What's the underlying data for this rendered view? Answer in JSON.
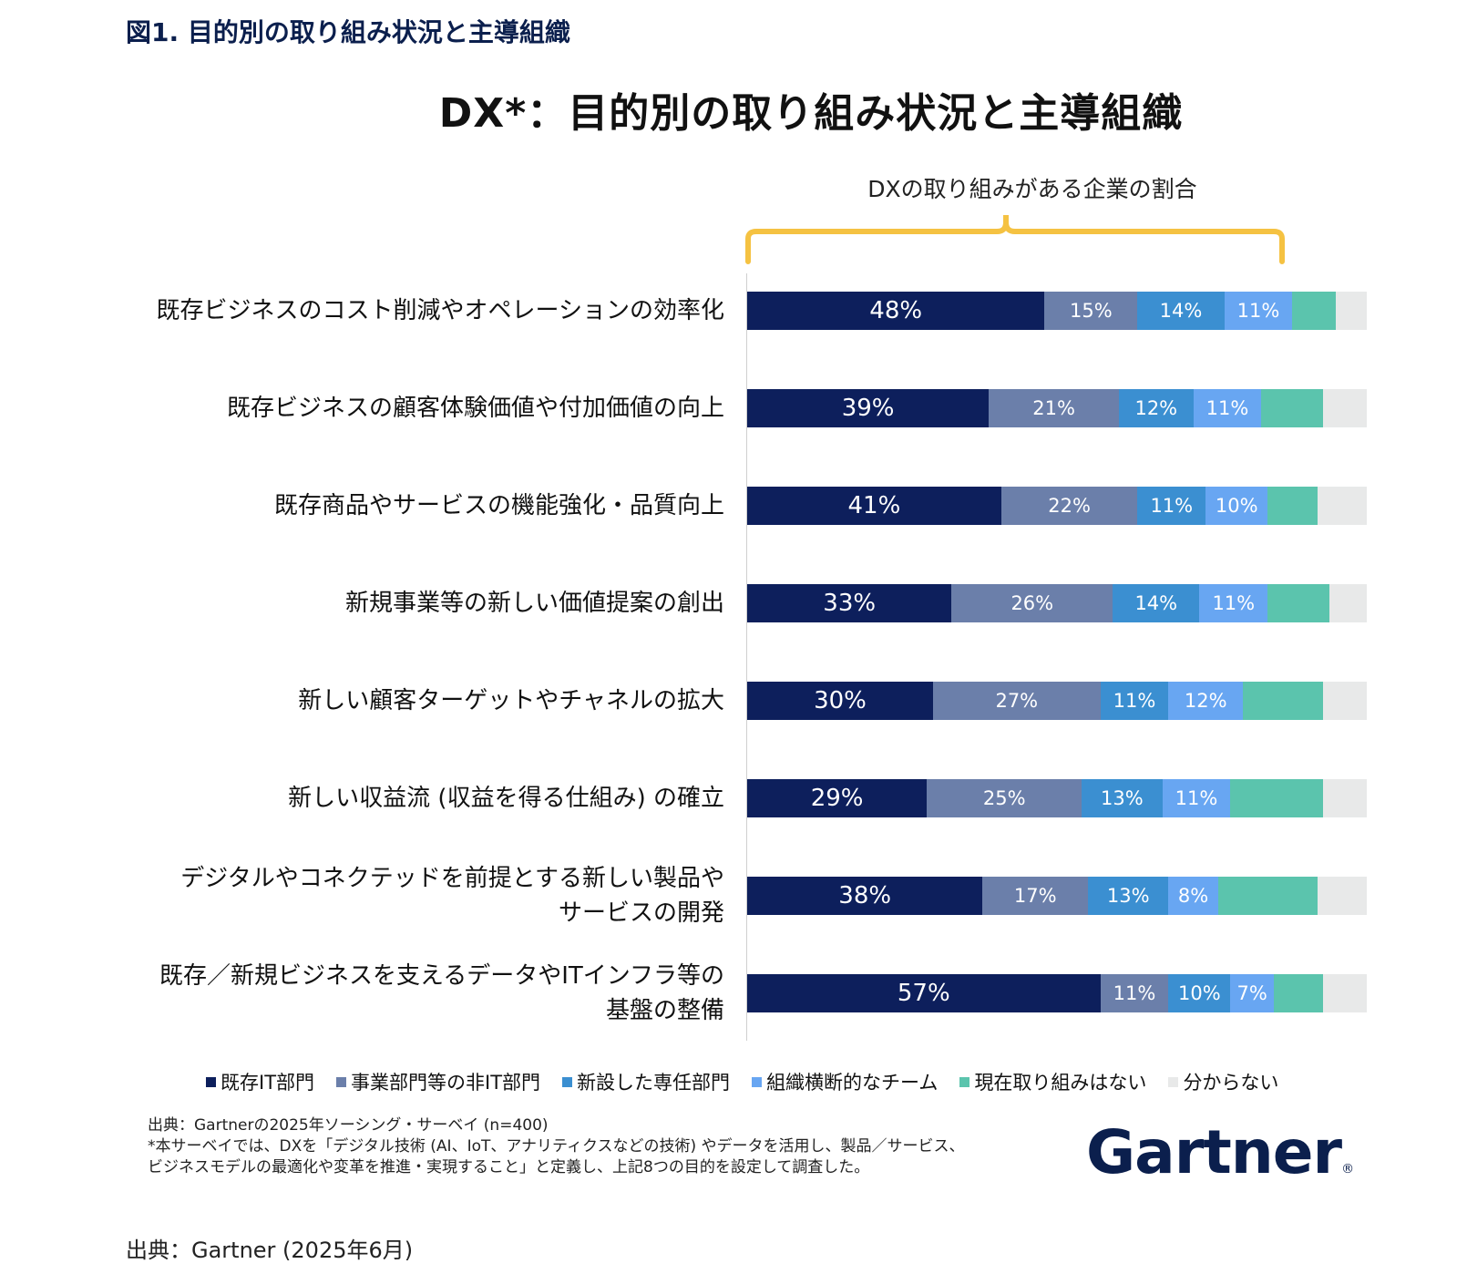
{
  "figure_label": "図1. 目的別の取り組み状況と主導組織",
  "bracket_label": "DXの取り組みがある企業の割合",
  "notes": [
    "出典：Gartnerの2025年ソーシング・サーベイ (n=400)",
    "*本サーベイでは、DXを「デジタル技術 (AI、IoT、アナリティクスなどの技術) やデータを活用し、製品／サービス、",
    "ビジネスモデルの最適化や変革を推進・実現すること」と定義し、上記8つの目的を設定して調査した。"
  ],
  "brand": "Gartner",
  "brand_mark": "®",
  "source": "出典：Gartner (2025年6月)",
  "colors": {
    "existing_it": "#0d1f5c",
    "business_non_it": "#6b7faa",
    "new_dedicated": "#3b8fd1",
    "cross_team": "#68a6f2",
    "none": "#5bc4ad",
    "unknown": "#e8e9e9",
    "bracket": "#f5c242"
  },
  "chart_data": {
    "type": "bar",
    "orientation": "horizontal",
    "stacked": true,
    "title": "DX*：目的別の取り組み状況と主導組織",
    "xlim": [
      0,
      100
    ],
    "categories": [
      [
        "既存ビジネスのコスト削減やオペレーションの効率化"
      ],
      [
        "既存ビジネスの顧客体験価値や付加価値の向上"
      ],
      [
        "既存商品やサービスの機能強化・品質向上"
      ],
      [
        "新規事業等の新しい価値提案の創出"
      ],
      [
        "新しい顧客ターゲットやチャネルの拡大"
      ],
      [
        "新しい収益流 (収益を得る仕組み) の確立"
      ],
      [
        "デジタルやコネクテッドを前提とする新しい製品や",
        "サービスの開発"
      ],
      [
        "既存／新規ビジネスを支えるデータやITインフラ等の",
        "基盤の整備"
      ]
    ],
    "series": [
      {
        "name": "既存IT部門",
        "color": "#0d1f5c",
        "values": [
          48,
          39,
          41,
          33,
          30,
          29,
          38,
          57
        ],
        "labels": [
          "48%",
          "39%",
          "41%",
          "33%",
          "30%",
          "29%",
          "38%",
          "57%"
        ]
      },
      {
        "name": "事業部門等の非IT部門",
        "color": "#6b7faa",
        "values": [
          15,
          21,
          22,
          26,
          27,
          25,
          17,
          11
        ],
        "labels": [
          "15%",
          "21%",
          "22%",
          "26%",
          "27%",
          "25%",
          "17%",
          "11%"
        ]
      },
      {
        "name": "新設した専任部門",
        "color": "#3b8fd1",
        "values": [
          14,
          12,
          11,
          14,
          11,
          13,
          13,
          10
        ],
        "labels": [
          "14%",
          "12%",
          "11%",
          "14%",
          "11%",
          "13%",
          "13%",
          "10%"
        ]
      },
      {
        "name": "組織横断的なチーム",
        "color": "#68a6f2",
        "values": [
          11,
          11,
          10,
          11,
          12,
          11,
          8,
          7
        ],
        "labels": [
          "11%",
          "11%",
          "10%",
          "11%",
          "12%",
          "11%",
          "8%",
          "7%"
        ]
      },
      {
        "name": "現在取り組みはない",
        "color": "#5bc4ad",
        "values": [
          7,
          10,
          8,
          10,
          13,
          15,
          16,
          8
        ],
        "labels": [
          "",
          "",
          "",
          "",
          "",
          "",
          "",
          ""
        ]
      },
      {
        "name": "分からない",
        "color": "#e8e9e9",
        "values": [
          5,
          7,
          8,
          6,
          7,
          7,
          8,
          7
        ],
        "labels": [
          "",
          "",
          "",
          "",
          "",
          "",
          "",
          ""
        ]
      }
    ],
    "legend_position": "bottom",
    "grid": false
  }
}
